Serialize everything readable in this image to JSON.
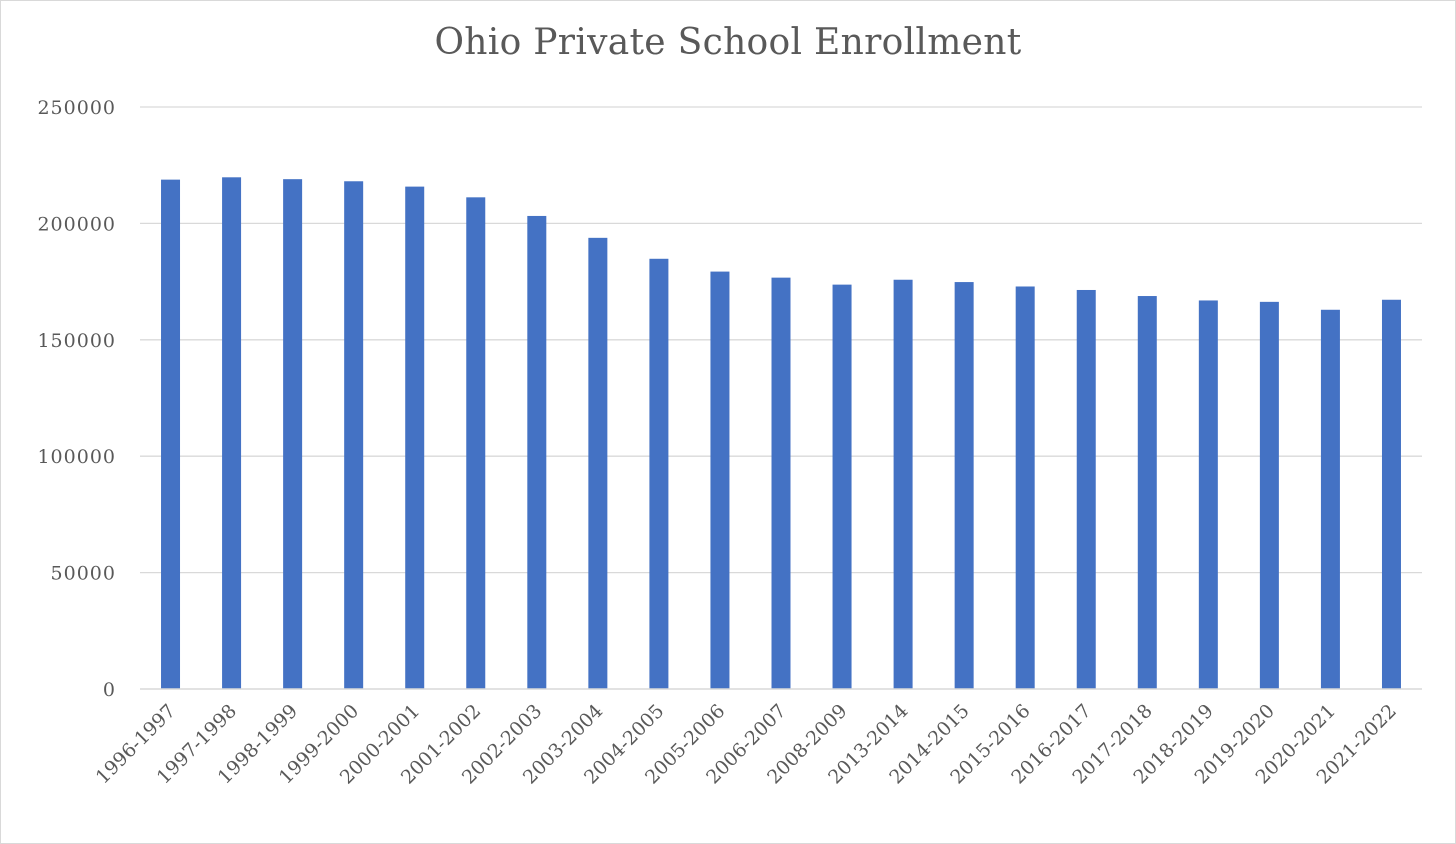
{
  "chart_data": {
    "type": "bar",
    "title": "Ohio Private School Enrollment",
    "xlabel": "",
    "ylabel": "",
    "categories": [
      "1996-1997",
      "1997-1998",
      "1998-1999",
      "1999-2000",
      "2000-2001",
      "2001-2002",
      "2002-2003",
      "2003-2004",
      "2004-2005",
      "2005-2006",
      "2006-2007",
      "2008-2009",
      "2013-2014",
      "2014-2015",
      "2015-2016",
      "2016-2017",
      "2017-2018",
      "2018-2019",
      "2019-2020",
      "2020-2021",
      "2021-2022"
    ],
    "values": [
      218800,
      219800,
      219000,
      218100,
      215800,
      211200,
      203200,
      193800,
      184800,
      179300,
      176700,
      173700,
      175800,
      174800,
      172900,
      171400,
      168800,
      166900,
      166300,
      162900,
      167200
    ],
    "ylim": [
      0,
      250000
    ],
    "yticks": [
      "0",
      "50000",
      "100000",
      "150000",
      "200000",
      "250000"
    ],
    "grid": true,
    "legend": "none",
    "colors": {
      "bar": "#4472c4",
      "grid": "#d9d9d9",
      "text": "#595959"
    }
  }
}
